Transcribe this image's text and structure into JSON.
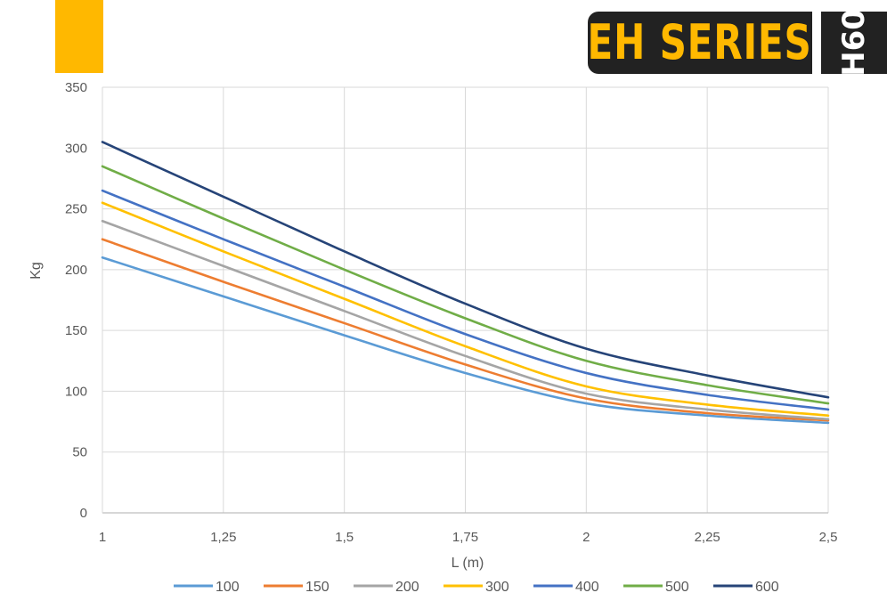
{
  "header": {
    "brand": "EH SERIES",
    "model": "H60",
    "accent_color": "#FFB800",
    "badge_color": "#222222"
  },
  "chart_data": {
    "type": "line",
    "title": "",
    "xlabel": "L (m)",
    "ylabel": "Kg",
    "x": [
      1,
      1.25,
      1.5,
      1.75,
      2,
      2.25,
      2.5
    ],
    "x_tick_labels": [
      "1",
      "1,25",
      "1,5",
      "1,75",
      "2",
      "2,25",
      "2,5"
    ],
    "xlim": [
      1,
      2.5
    ],
    "ylim": [
      0,
      350
    ],
    "y_ticks": [
      0,
      50,
      100,
      150,
      200,
      250,
      300,
      350
    ],
    "grid": true,
    "legend": "bottom",
    "series": [
      {
        "name": "100",
        "color": "#5B9BD5",
        "values": [
          210,
          178,
          146,
          115,
          90,
          80,
          74
        ]
      },
      {
        "name": "150",
        "color": "#ED7D31",
        "values": [
          225,
          190,
          156,
          122,
          94,
          82,
          76
        ]
      },
      {
        "name": "200",
        "color": "#A5A5A5",
        "values": [
          240,
          203,
          166,
          129,
          98,
          85,
          77
        ]
      },
      {
        "name": "300",
        "color": "#FFC000",
        "values": [
          255,
          215,
          176,
          137,
          104,
          89,
          80
        ]
      },
      {
        "name": "400",
        "color": "#4472C4",
        "values": [
          265,
          225,
          186,
          147,
          115,
          97,
          85
        ]
      },
      {
        "name": "500",
        "color": "#70AD47",
        "values": [
          285,
          242,
          200,
          160,
          125,
          105,
          90
        ]
      },
      {
        "name": "600",
        "color": "#264478",
        "values": [
          305,
          260,
          215,
          172,
          135,
          113,
          95
        ]
      }
    ]
  }
}
